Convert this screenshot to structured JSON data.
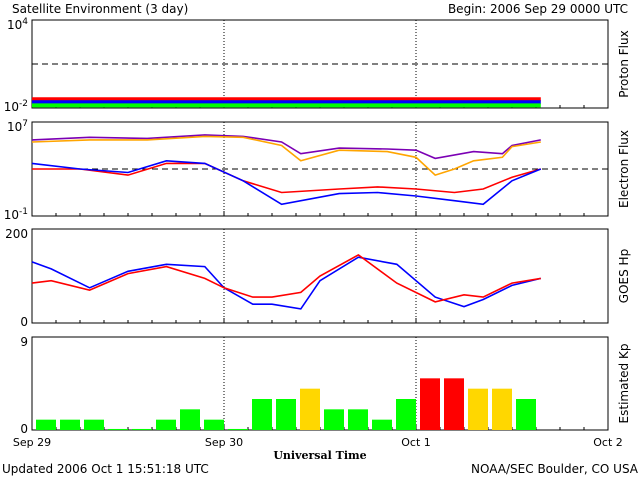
{
  "header": {
    "title": "Satellite Environment (3 day)",
    "begin": "Begin:  2006 Sep 29 0000 UTC"
  },
  "footer": {
    "updated": "Updated 2006 Oct  1 15:51:18 UTC",
    "credit": "NOAA/SEC Boulder, CO USA"
  },
  "xaxis": {
    "title": "Universal Time",
    "ticks": [
      "Sep 29",
      "Sep 30",
      "Oct 1",
      "Oct 2"
    ]
  },
  "colors": {
    "red": "#ff0000",
    "blue": "#0000ff",
    "green": "#00ff00",
    "purple": "#7b00b4",
    "orange": "#ffa500",
    "yellow": "#ffd700"
  },
  "chart_data": [
    {
      "type": "line",
      "ylabel": "Proton Flux",
      "yscale": "log",
      "ylim": [
        0.01,
        10000
      ],
      "ytick_labels": [
        "10^4",
        "10^-2"
      ],
      "threshold": 10,
      "x_range_days": [
        0,
        3
      ],
      "series": [
        {
          "color": "red",
          "x": [
            0,
            2.65
          ],
          "values": [
            0.04,
            0.04
          ]
        },
        {
          "color": "blue",
          "x": [
            0,
            2.65
          ],
          "values": [
            0.025,
            0.025
          ]
        },
        {
          "color": "green",
          "x": [
            0,
            2.65
          ],
          "values": [
            0.015,
            0.015
          ]
        }
      ]
    },
    {
      "type": "line",
      "ylabel": "Electron Flux",
      "yscale": "log",
      "ylim": [
        0.1,
        10000000
      ],
      "ytick_labels": [
        "10^7",
        "10^-1"
      ],
      "threshold": 1000,
      "series": [
        {
          "color": "purple",
          "x": [
            0,
            0.3,
            0.6,
            0.9,
            1.1,
            1.3,
            1.4,
            1.6,
            1.85,
            2.0,
            2.1,
            2.3,
            2.45,
            2.5,
            2.65
          ],
          "values": [
            300000,
            500000,
            400000,
            800000,
            600000,
            200000,
            20000,
            60000,
            50000,
            40000,
            8000,
            30000,
            20000,
            100000,
            300000
          ]
        },
        {
          "color": "orange",
          "x": [
            0,
            0.3,
            0.6,
            0.9,
            1.1,
            1.3,
            1.4,
            1.6,
            1.85,
            2.0,
            2.1,
            2.2,
            2.3,
            2.45,
            2.5,
            2.65
          ],
          "values": [
            200000,
            300000,
            300000,
            600000,
            500000,
            100000,
            5000,
            40000,
            30000,
            10000,
            300,
            1000,
            5000,
            10000,
            80000,
            200000
          ]
        },
        {
          "color": "red",
          "x": [
            0,
            0.25,
            0.5,
            0.7,
            0.9,
            1.1,
            1.3,
            1.6,
            1.8,
            2.0,
            2.2,
            2.35,
            2.5,
            2.65
          ],
          "values": [
            1000,
            1000,
            300,
            3000,
            3000,
            100,
            10,
            20,
            30,
            20,
            10,
            20,
            200,
            1000
          ]
        },
        {
          "color": "blue",
          "x": [
            0,
            0.25,
            0.5,
            0.7,
            0.9,
            1.1,
            1.3,
            1.6,
            1.8,
            2.0,
            2.2,
            2.35,
            2.5,
            2.65
          ],
          "values": [
            3000,
            1000,
            500,
            5000,
            3000,
            100,
            1,
            8,
            10,
            5,
            2,
            1,
            100,
            1000
          ]
        }
      ]
    },
    {
      "type": "line",
      "ylabel": "GOES Hp",
      "ylim": [
        0,
        200
      ],
      "ytick_labels": [
        "200",
        "0"
      ],
      "series": [
        {
          "color": "blue",
          "x": [
            0,
            0.1,
            0.3,
            0.5,
            0.7,
            0.9,
            1.0,
            1.15,
            1.25,
            1.4,
            1.5,
            1.7,
            1.9,
            2.1,
            2.25,
            2.35,
            2.5,
            2.65
          ],
          "values": [
            130,
            115,
            75,
            110,
            125,
            120,
            75,
            40,
            40,
            30,
            90,
            140,
            125,
            55,
            35,
            50,
            80,
            95
          ]
        },
        {
          "color": "red",
          "x": [
            0,
            0.1,
            0.3,
            0.5,
            0.7,
            0.9,
            1.0,
            1.15,
            1.25,
            1.4,
            1.5,
            1.7,
            1.9,
            2.1,
            2.25,
            2.35,
            2.5,
            2.65
          ],
          "values": [
            85,
            90,
            70,
            105,
            120,
            95,
            75,
            55,
            55,
            65,
            100,
            145,
            85,
            45,
            60,
            55,
            85,
            95
          ]
        }
      ]
    },
    {
      "type": "bar",
      "ylabel": "Estimated Kp",
      "ylim": [
        0,
        9
      ],
      "ytick_labels": [
        "9",
        "0"
      ],
      "bar_width_days": 0.125,
      "values": [
        1,
        1,
        1,
        0.1,
        0.1,
        1,
        2,
        1,
        0.1,
        3,
        3,
        4,
        2,
        2,
        1,
        3,
        5,
        5,
        4,
        4,
        3
      ],
      "bar_colors": [
        "green",
        "green",
        "green",
        "green",
        "green",
        "green",
        "green",
        "green",
        "green",
        "green",
        "green",
        "yellow",
        "green",
        "green",
        "green",
        "green",
        "red",
        "red",
        "yellow",
        "yellow",
        "green"
      ]
    }
  ]
}
